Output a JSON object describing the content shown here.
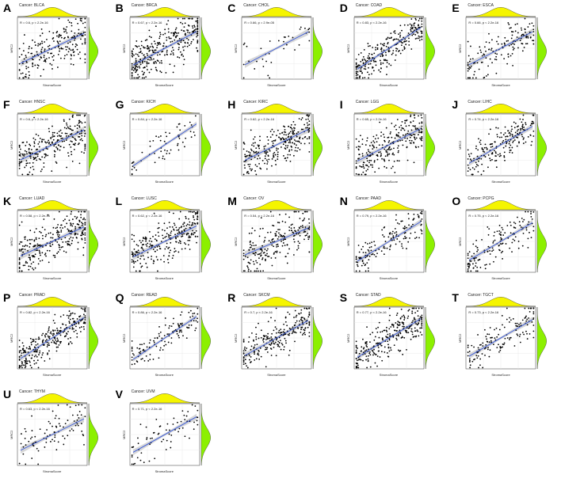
{
  "figure": {
    "x_axis_label": "StromaScore",
    "y_axis_label": "MRC2",
    "top_density_color": "#f5f500",
    "right_density_color": "#8cf000",
    "point_color": "#000000",
    "fit_line_color": "#3b5bdb",
    "ci_band_color": "#b0b0b0"
  },
  "chart_data": [
    {
      "letter": "A",
      "title": "Cancer: BLCA",
      "stat": "R = 0.6, p < 2.2e-16",
      "type": "scatter",
      "r": 0.6,
      "n": 220,
      "seed": 1
    },
    {
      "letter": "B",
      "title": "Cancer: BRCA",
      "stat": "R = 0.67, p < 2.2e-16",
      "type": "scatter",
      "r": 0.67,
      "n": 320,
      "seed": 2
    },
    {
      "letter": "C",
      "title": "Cancer: CHOL",
      "stat": "R = 0.66, p = 2.9e-05",
      "type": "scatter",
      "r": 0.66,
      "n": 36,
      "seed": 3
    },
    {
      "letter": "D",
      "title": "Cancer: COAD",
      "stat": "R = 0.83, p < 2.2e-16",
      "type": "scatter",
      "r": 0.83,
      "n": 260,
      "seed": 4
    },
    {
      "letter": "E",
      "title": "Cancer: ESCA",
      "stat": "R = 0.66, p < 2.2e-16",
      "type": "scatter",
      "r": 0.66,
      "n": 150,
      "seed": 5
    },
    {
      "letter": "F",
      "title": "Cancer: HNSC",
      "stat": "R = 0.6, p < 2.2e-16",
      "type": "scatter",
      "r": 0.6,
      "n": 260,
      "seed": 6
    },
    {
      "letter": "G",
      "title": "Cancer: KICH",
      "stat": "R = 0.84, p < 2.2e-16",
      "type": "scatter",
      "r": 0.84,
      "n": 60,
      "seed": 7
    },
    {
      "letter": "H",
      "title": "Cancer: KIRC",
      "stat": "R = 0.62, p < 2.2e-16",
      "type": "scatter",
      "r": 0.62,
      "n": 260,
      "seed": 8
    },
    {
      "letter": "I",
      "title": "Cancer: LGG",
      "stat": "R = 0.65, p < 2.2e-16",
      "type": "scatter",
      "r": 0.65,
      "n": 260,
      "seed": 9
    },
    {
      "letter": "J",
      "title": "Cancer: LIHC",
      "stat": "R = 0.74, p < 2.2e-16",
      "type": "scatter",
      "r": 0.74,
      "n": 200,
      "seed": 10
    },
    {
      "letter": "K",
      "title": "Cancer: LUAD",
      "stat": "R = 0.58, p < 2.2e-16",
      "type": "scatter",
      "r": 0.58,
      "n": 270,
      "seed": 11
    },
    {
      "letter": "L",
      "title": "Cancer: LUSC",
      "stat": "R = 0.62, p < 2.2e-16",
      "type": "scatter",
      "r": 0.62,
      "n": 270,
      "seed": 12
    },
    {
      "letter": "M",
      "title": "Cancer: OV",
      "stat": "R = 0.54, p < 2.2e-16",
      "type": "scatter",
      "r": 0.54,
      "n": 220,
      "seed": 13
    },
    {
      "letter": "N",
      "title": "Cancer: PAAD",
      "stat": "R = 0.79, p < 2.2e-16",
      "type": "scatter",
      "r": 0.79,
      "n": 150,
      "seed": 14
    },
    {
      "letter": "O",
      "title": "Cancer: PCPG",
      "stat": "R = 0.75, p < 2.2e-16",
      "type": "scatter",
      "r": 0.75,
      "n": 150,
      "seed": 15
    },
    {
      "letter": "P",
      "title": "Cancer: PRAD",
      "stat": "R = 0.82, p < 2.2e-16",
      "type": "scatter",
      "r": 0.82,
      "n": 280,
      "seed": 16
    },
    {
      "letter": "Q",
      "title": "Cancer: READ",
      "stat": "R = 0.86, p < 2.2e-16",
      "type": "scatter",
      "r": 0.86,
      "n": 120,
      "seed": 17
    },
    {
      "letter": "R",
      "title": "Cancer: SKCM",
      "stat": "R = 0.7, p < 2.2e-16",
      "type": "scatter",
      "r": 0.7,
      "n": 240,
      "seed": 18
    },
    {
      "letter": "S",
      "title": "Cancer: STAD",
      "stat": "R = 0.77, p < 2.2e-16",
      "type": "scatter",
      "r": 0.77,
      "n": 280,
      "seed": 19
    },
    {
      "letter": "T",
      "title": "Cancer: TGCT",
      "stat": "R = 0.73, p < 2.2e-16",
      "type": "scatter",
      "r": 0.73,
      "n": 140,
      "seed": 20
    },
    {
      "letter": "U",
      "title": "Cancer: THYM",
      "stat": "R = 0.63, p < 2.2e-16",
      "type": "scatter",
      "r": 0.63,
      "n": 90,
      "seed": 21
    },
    {
      "letter": "V",
      "title": "Cancer: UVM",
      "stat": "R = 0.71, p < 2.2e-16",
      "type": "scatter",
      "r": 0.71,
      "n": 70,
      "seed": 22
    }
  ]
}
